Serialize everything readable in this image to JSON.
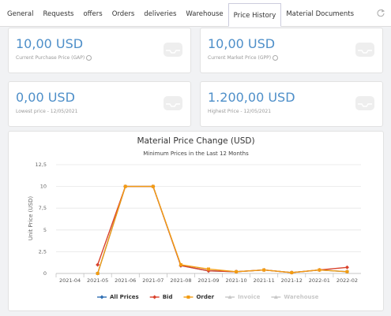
{
  "tabs": [
    {
      "label": "General"
    },
    {
      "label": "Requests"
    },
    {
      "label": "offers"
    },
    {
      "label": "Orders"
    },
    {
      "label": "deliveries"
    },
    {
      "label": "Warehouse"
    },
    {
      "label": "Price History",
      "active": true
    },
    {
      "label": "Material Documents"
    }
  ],
  "cards": [
    {
      "value": "10,00 USD",
      "label": "Current Purchase Price (GAP)"
    },
    {
      "value": "10,00 USD",
      "label": "Current Market Price (GPP)"
    },
    {
      "value": "0,00 USD",
      "label": "Lowest price - 12/05/2021"
    },
    {
      "value": "1.200,00 USD",
      "label": "Highest Price - 12/05/2021"
    }
  ],
  "chart_data": {
    "type": "line",
    "title": "Material Price Change (USD)",
    "subtitle": "Minimum Prices in the Last 12 Months",
    "y_label": "Unit Price (USD)",
    "categories": [
      "2021-04",
      "2021-05",
      "2021-06",
      "2021-07",
      "2021-08",
      "2021-09",
      "2021-10",
      "2021-11",
      "2021-12",
      "2022-01",
      "2022-02"
    ],
    "ylim": [
      0,
      12.5
    ],
    "yticks": [
      0,
      {
        "value": 2.5,
        "label": "2,5"
      },
      5,
      {
        "value": 7.5,
        "label": "7,5"
      },
      10,
      {
        "value": 12.5,
        "label": "12,5"
      }
    ],
    "grid": true,
    "series": [
      {
        "name": "All Prices",
        "color": "#2f6fb3",
        "marker": "diamond",
        "values": [
          null,
          0,
          10,
          10,
          0.9,
          0.3,
          0.2,
          0.4,
          0.1,
          0.4,
          0.2
        ]
      },
      {
        "name": "Bid",
        "color": "#d9412b",
        "marker": "diamond",
        "values": [
          null,
          1,
          10,
          10,
          0.9,
          0.3,
          0.2,
          0.4,
          0.1,
          0.4,
          0.7
        ]
      },
      {
        "name": "Order",
        "color": "#f39c12",
        "marker": "square",
        "values": [
          null,
          0,
          10,
          10,
          1,
          0.5,
          0.2,
          0.4,
          0.1,
          0.4,
          0.2
        ]
      },
      {
        "name": "Invoice",
        "color": "#c8c8c8",
        "marker": "triangle",
        "visible": false
      },
      {
        "name": "Warehouse",
        "color": "#c8c8c8",
        "marker": "triangle",
        "visible": false
      }
    ]
  }
}
